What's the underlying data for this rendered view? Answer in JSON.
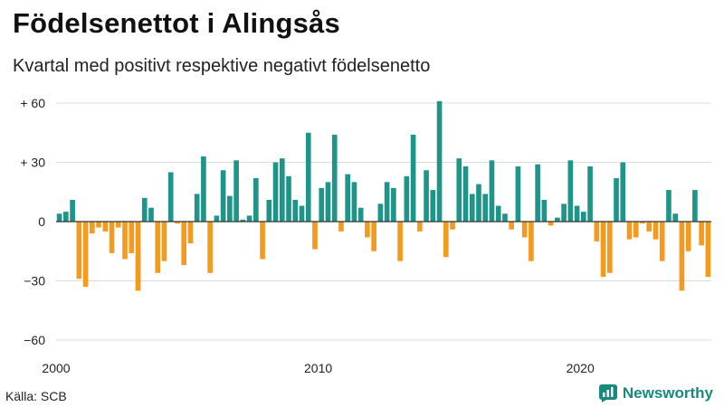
{
  "header": {
    "title": "Födelsenettot i Alingsås",
    "subtitle": "Kvartal med positivt respektive negativt födelsenetto"
  },
  "footer": {
    "source": "Källa: SCB",
    "brand": "Newsworthy",
    "brand_icon": "newsworthy-logo-icon"
  },
  "colors": {
    "positive": "#1f958a",
    "negative": "#f39b1e",
    "grid": "#dddddd",
    "brand": "#178a80"
  },
  "chart_data": {
    "type": "bar",
    "title": "Födelsenettot i Alingsås",
    "subtitle": "Kvartal med positivt respektive negativt födelsenetto",
    "x_start": "2000 Q1",
    "x_ticks": [
      {
        "label": "2000",
        "index": 0
      },
      {
        "label": "2010",
        "index": 40
      },
      {
        "label": "2020",
        "index": 80
      }
    ],
    "y_ticks": [
      {
        "label": "+ 60",
        "value": 60
      },
      {
        "label": "+ 30",
        "value": 30
      },
      {
        "label": "0",
        "value": 0
      },
      {
        "label": "−30",
        "value": -30
      },
      {
        "label": "−60",
        "value": -60
      }
    ],
    "ylim": [
      -60,
      60
    ],
    "grid": true,
    "values": [
      4,
      5,
      11,
      -29,
      -33,
      -6,
      -3,
      -5,
      -16,
      -3,
      -19,
      -16,
      -35,
      12,
      7,
      -26,
      -20,
      25,
      -1,
      -22,
      -11,
      14,
      33,
      -26,
      3,
      26,
      13,
      31,
      1,
      3,
      22,
      -19,
      11,
      30,
      32,
      23,
      11,
      8,
      45,
      -14,
      17,
      20,
      44,
      -5,
      24,
      20,
      7,
      -8,
      -15,
      9,
      20,
      17,
      -20,
      23,
      44,
      -5,
      26,
      16,
      61,
      -18,
      -4,
      32,
      28,
      14,
      19,
      14,
      31,
      8,
      4,
      -4,
      28,
      -8,
      -20,
      29,
      11,
      -2,
      2,
      9,
      31,
      8,
      5,
      28,
      -10,
      -28,
      -26,
      22,
      30,
      -9,
      -8,
      -1,
      -5,
      -9,
      -20,
      16,
      4,
      -35,
      -15,
      16,
      -12,
      -28
    ]
  }
}
